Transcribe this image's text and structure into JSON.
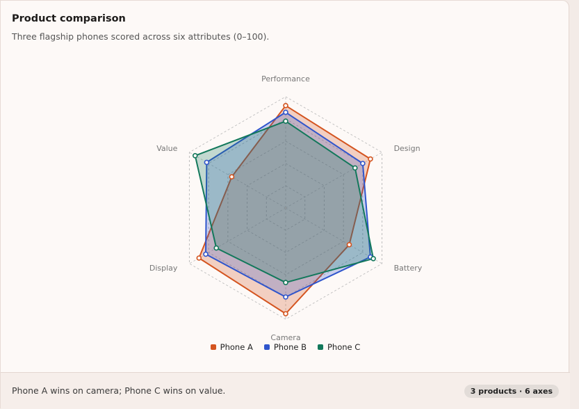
{
  "card": {
    "title": "Product comparison",
    "subtitle": "Three flagship phones scored across six attributes (0–100)."
  },
  "chart_data": {
    "type": "radar",
    "title": "Product comparison",
    "subtitle": "Three flagship phones scored across six attributes (0–100).",
    "axes": [
      "Performance",
      "Design",
      "Battery",
      "Camera",
      "Display",
      "Value"
    ],
    "range": [
      0,
      100
    ],
    "grid": "dashed concentric hexagons",
    "legend_position": "bottom-center",
    "series": [
      {
        "name": "Phone A",
        "color": "#d4541f",
        "values": [
          92,
          88,
          66,
          95,
          90,
          56
        ]
      },
      {
        "name": "Phone B",
        "color": "#2f55cc",
        "values": [
          86,
          80,
          88,
          80,
          83,
          82
        ]
      },
      {
        "name": "Phone C",
        "color": "#12785b",
        "values": [
          78,
          72,
          91,
          67,
          72,
          94
        ]
      }
    ]
  },
  "footer": {
    "text": "Phone A wins on camera; Phone C wins on value.",
    "badge": "3 products · 6 axes"
  }
}
